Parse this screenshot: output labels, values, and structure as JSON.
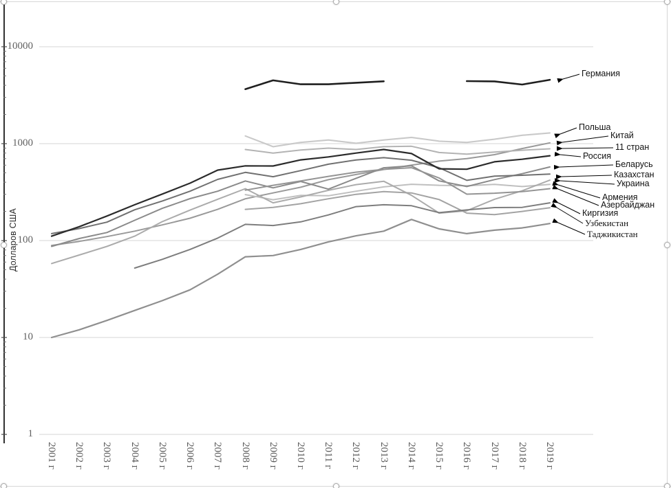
{
  "chart_data": {
    "type": "line",
    "title": "",
    "ylabel": "Долларов США",
    "y_scale": "log",
    "ylim": [
      1,
      10000
    ],
    "grid": "horizontal",
    "legend_position": "right-callouts",
    "y_ticks": [
      {
        "value": 1,
        "label": "1"
      },
      {
        "value": 10,
        "label": "10"
      },
      {
        "value": 100,
        "label": "100"
      },
      {
        "value": 1000,
        "label": "1000"
      },
      {
        "value": 10000,
        "label": "10000"
      }
    ],
    "x_tick_labels": [
      "2001 г",
      "2002 г",
      "2003 г",
      "2004 г",
      "2005 г",
      "2006 г",
      "2007 г",
      "2008 г",
      "2009 г",
      "2010 г",
      "2011 г",
      "2012 г",
      "2013 г",
      "2014 г",
      "2015 г",
      "2016 г",
      "2017 г",
      "2018 г",
      "2019 г"
    ],
    "years": [
      2001,
      2002,
      2003,
      2004,
      2005,
      2006,
      2007,
      2008,
      2009,
      2010,
      2011,
      2012,
      2013,
      2014,
      2015,
      2016,
      2017,
      2018,
      2019
    ],
    "series": [
      {
        "name": "Германия",
        "color": "#1f1f1f",
        "width": 2.6,
        "values": [
          null,
          null,
          null,
          null,
          null,
          null,
          null,
          3650,
          4500,
          4100,
          4100,
          4250,
          4400,
          null,
          null,
          4420,
          4390,
          4070,
          4560
        ]
      },
      {
        "name": "Польша",
        "color": "#c9c9c9",
        "width": 2.1,
        "values": [
          null,
          null,
          null,
          null,
          null,
          null,
          null,
          1200,
          930,
          1030,
          1090,
          1010,
          1090,
          1160,
          1060,
          1030,
          1110,
          1220,
          1290
        ]
      },
      {
        "name": "Китай",
        "color": "#999999",
        "width": 2.0,
        "values": [
          89,
          98,
          110,
          125,
          145,
          170,
          210,
          270,
          310,
          355,
          425,
          480,
          540,
          600,
          660,
          700,
          770,
          890,
          1020
        ]
      },
      {
        "name": "11 стран",
        "color": "#b3b3b3",
        "width": 2.0,
        "values": [
          null,
          null,
          null,
          null,
          null,
          null,
          null,
          870,
          800,
          860,
          900,
          870,
          930,
          940,
          810,
          780,
          820,
          855,
          885
        ]
      },
      {
        "name": "Россия",
        "color": "#2b2b2b",
        "width": 2.2,
        "values": [
          111,
          139,
          179,
          234,
          302,
          391,
          533,
          590,
          588,
          680,
          730,
          800,
          870,
          790,
          550,
          545,
          650,
          690,
          750
        ]
      },
      {
        "name": "Беларусь",
        "color": "#8a8a8a",
        "width": 2.0,
        "values": [
          87,
          105,
          121,
          162,
          215,
          271,
          323,
          412,
          350,
          407,
          339,
          439,
          564,
          590,
          413,
          361,
          426,
          490,
          575
        ]
      },
      {
        "name": "Казахстан",
        "color": "#707070",
        "width": 2.0,
        "values": [
          118,
          133,
          155,
          208,
          256,
          323,
          428,
          505,
          456,
          527,
          614,
          679,
          717,
          675,
          565,
          418,
          463,
          472,
          486
        ]
      },
      {
        "name": "Украина",
        "color": "#ababab",
        "width": 2.0,
        "values": [
          58,
          71,
          87,
          111,
          157,
          206,
          267,
          343,
          245,
          282,
          330,
          378,
          409,
          293,
          192,
          203,
          267,
          326,
          420
        ]
      },
      {
        "name": "Армения",
        "color": "#bfbfbf",
        "width": 2.0,
        "values": [
          null,
          null,
          null,
          null,
          null,
          null,
          null,
          298,
          264,
          293,
          290,
          323,
          358,
          381,
          372,
          368,
          380,
          361,
          380
        ]
      },
      {
        "name": "Азербайджан",
        "color": "#949494",
        "width": 2.0,
        "values": [
          null,
          null,
          null,
          null,
          null,
          null,
          null,
          331,
          372,
          413,
          460,
          508,
          543,
          565,
          442,
          301,
          308,
          320,
          343
        ]
      },
      {
        "name": "Киргизия",
        "color": "#7d7d7d",
        "width": 2.0,
        "values": [
          null,
          null,
          null,
          52,
          64,
          81,
          106,
          147,
          143,
          156,
          184,
          224,
          234,
          229,
          194,
          207,
          219,
          220,
          245
        ]
      },
      {
        "name": "Узбекистан",
        "color": "#a3a3a3",
        "width": 2.0,
        "values": [
          null,
          null,
          null,
          null,
          null,
          null,
          null,
          210,
          220,
          240,
          270,
          300,
          320,
          310,
          265,
          192,
          185,
          200,
          218
        ]
      },
      {
        "name": "Таджикистан",
        "color": "#8f8f8f",
        "width": 2.2,
        "values": [
          10,
          12,
          15,
          19,
          24,
          31,
          45,
          68,
          70,
          81,
          97,
          112,
          125,
          165,
          132,
          118,
          128,
          135,
          150
        ]
      }
    ]
  }
}
